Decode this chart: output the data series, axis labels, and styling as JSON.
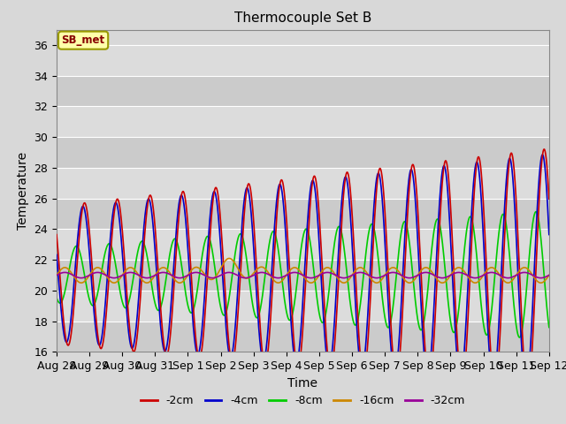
{
  "title": "Thermocouple Set B",
  "xlabel": "Time",
  "ylabel": "Temperature",
  "annotation": "SB_met",
  "ylim": [
    16,
    37
  ],
  "yticks": [
    16,
    18,
    20,
    22,
    24,
    26,
    28,
    30,
    32,
    34,
    36
  ],
  "series_colors": {
    "-2cm": "#cc0000",
    "-4cm": "#0000cc",
    "-8cm": "#00cc00",
    "-16cm": "#cc8800",
    "-32cm": "#990099"
  },
  "bg_color": "#d8d8d8",
  "plot_bg_color": "#d8d8d8",
  "grid_color": "#ffffff",
  "xtick_labels": [
    "Aug 28",
    "Aug 29",
    "Aug 30",
    "Aug 31",
    "Sep 1",
    "Sep 2",
    "Sep 3",
    "Sep 4",
    "Sep 5",
    "Sep 6",
    "Sep 7",
    "Sep 8",
    "Sep 9",
    "Sep 10",
    "Sep 11",
    "Sep 12"
  ],
  "num_days": 15,
  "figsize": [
    6.4,
    4.8
  ],
  "dpi": 100
}
